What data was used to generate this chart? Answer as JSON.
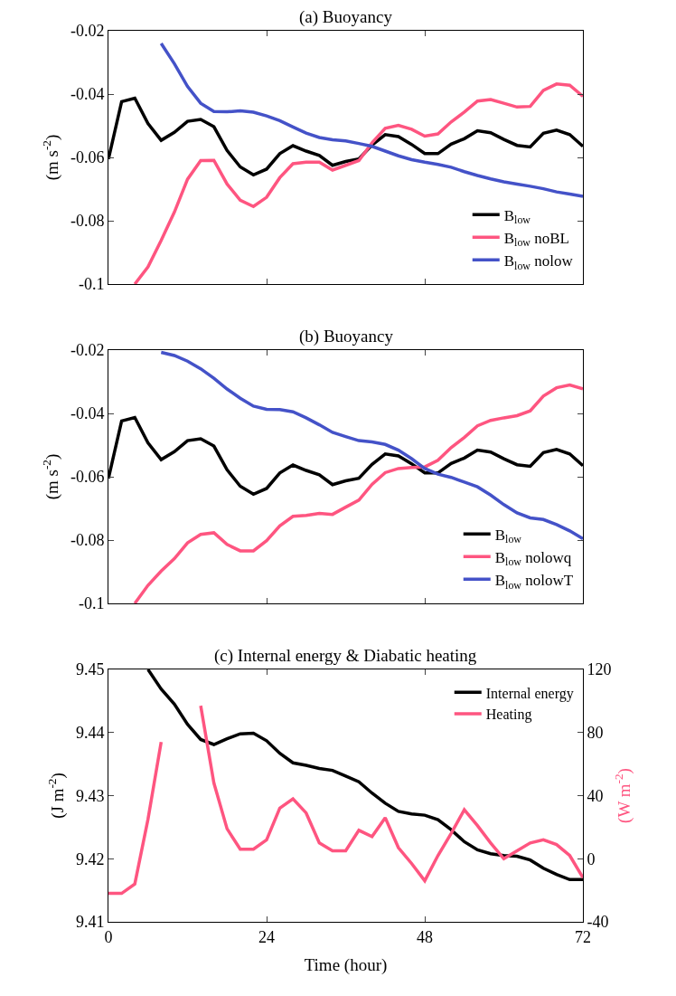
{
  "chart_data": [
    {
      "type": "line",
      "title": "(a) Buoyancy",
      "ylabel": "(m s$^{-2}$)",
      "x": [
        0,
        2,
        4,
        6,
        8,
        10,
        12,
        14,
        16,
        18,
        20,
        22,
        24,
        26,
        28,
        30,
        32,
        34,
        36,
        38,
        40,
        42,
        44,
        46,
        48,
        50,
        52,
        54,
        56,
        58,
        60,
        62,
        64,
        66,
        68,
        70,
        72
      ],
      "xlim": [
        0,
        72
      ],
      "xticks": [
        0,
        24,
        48,
        72
      ],
      "ylim": [
        -0.1,
        -0.02
      ],
      "yticks": [
        -0.1,
        -0.08,
        -0.06,
        -0.04,
        -0.02
      ],
      "tick_labels": "y",
      "legend": "bottom right",
      "line_style": "solid",
      "series": [
        {
          "name": "B$_{low}$",
          "color": "#000000",
          "values": [
            -0.0605,
            -0.0424,
            -0.0413,
            -0.0493,
            -0.0546,
            -0.0521,
            -0.0486,
            -0.048,
            -0.0503,
            -0.0578,
            -0.063,
            -0.0655,
            -0.0637,
            -0.0588,
            -0.0563,
            -0.058,
            -0.0594,
            -0.0625,
            -0.0613,
            -0.0605,
            -0.0561,
            -0.0528,
            -0.0534,
            -0.0559,
            -0.0588,
            -0.0588,
            -0.0558,
            -0.0541,
            -0.0516,
            -0.0522,
            -0.0543,
            -0.0562,
            -0.0567,
            -0.0524,
            -0.0514,
            -0.0528,
            -0.0565
          ]
        },
        {
          "name": "B$_{low}$ noBL",
          "color": "#fe5580",
          "values": [
            null,
            null,
            -0.1,
            -0.0946,
            -0.0862,
            -0.0773,
            -0.0669,
            -0.061,
            -0.0609,
            -0.0684,
            -0.0735,
            -0.0755,
            -0.0726,
            -0.0664,
            -0.062,
            -0.0615,
            -0.0615,
            -0.064,
            -0.0625,
            -0.061,
            -0.0554,
            -0.0508,
            -0.0499,
            -0.0511,
            -0.0533,
            -0.0526,
            -0.0488,
            -0.0457,
            -0.0422,
            -0.0417,
            -0.0429,
            -0.0441,
            -0.0439,
            -0.0388,
            -0.0368,
            -0.0372,
            -0.0407
          ]
        },
        {
          "name": "B$_{low}$ nolow",
          "color": "#4452c8",
          "values": [
            null,
            null,
            null,
            null,
            -0.024,
            -0.0304,
            -0.0376,
            -0.0429,
            -0.0455,
            -0.0456,
            -0.0453,
            -0.0457,
            -0.0469,
            -0.0484,
            -0.0504,
            -0.0523,
            -0.0537,
            -0.0544,
            -0.0548,
            -0.0556,
            -0.0565,
            -0.058,
            -0.0595,
            -0.0607,
            -0.0615,
            -0.0622,
            -0.0631,
            -0.0645,
            -0.0657,
            -0.0668,
            -0.0677,
            -0.0684,
            -0.0691,
            -0.0699,
            -0.0709,
            -0.0716,
            -0.0723
          ]
        }
      ]
    },
    {
      "type": "line",
      "title": "(b) Buoyancy",
      "ylabel": "(m s$^{-2}$)",
      "x": [
        0,
        2,
        4,
        6,
        8,
        10,
        12,
        14,
        16,
        18,
        20,
        22,
        24,
        26,
        28,
        30,
        32,
        34,
        36,
        38,
        40,
        42,
        44,
        46,
        48,
        50,
        52,
        54,
        56,
        58,
        60,
        62,
        64,
        66,
        68,
        70,
        72
      ],
      "xlim": [
        0,
        72
      ],
      "xticks": [
        0,
        24,
        48,
        72
      ],
      "ylim": [
        -0.1,
        -0.02
      ],
      "yticks": [
        -0.1,
        -0.08,
        -0.06,
        -0.04,
        -0.02
      ],
      "tick_labels": "y",
      "legend": "bottom right",
      "line_style": "solid",
      "series": [
        {
          "name": "B$_{low}$",
          "color": "#000000",
          "values": [
            -0.0605,
            -0.0424,
            -0.0413,
            -0.0493,
            -0.0546,
            -0.0521,
            -0.0486,
            -0.048,
            -0.0503,
            -0.0578,
            -0.063,
            -0.0655,
            -0.0637,
            -0.0588,
            -0.0563,
            -0.058,
            -0.0594,
            -0.0625,
            -0.0613,
            -0.0605,
            -0.0561,
            -0.0528,
            -0.0534,
            -0.0559,
            -0.0588,
            -0.0588,
            -0.0558,
            -0.0541,
            -0.0516,
            -0.0522,
            -0.0543,
            -0.0562,
            -0.0567,
            -0.0524,
            -0.0514,
            -0.0528,
            -0.0565
          ]
        },
        {
          "name": "B$_{low}$ nolowq",
          "color": "#fe5580",
          "values": [
            null,
            null,
            -0.1,
            -0.0943,
            -0.0898,
            -0.0859,
            -0.0809,
            -0.0782,
            -0.0777,
            -0.0814,
            -0.0834,
            -0.0834,
            -0.0802,
            -0.0755,
            -0.0725,
            -0.0722,
            -0.0716,
            -0.0719,
            -0.0696,
            -0.0674,
            -0.0624,
            -0.0587,
            -0.0574,
            -0.0571,
            -0.0569,
            -0.0548,
            -0.0508,
            -0.0476,
            -0.0439,
            -0.0422,
            -0.0414,
            -0.0407,
            -0.0392,
            -0.0345,
            -0.0319,
            -0.031,
            -0.0322
          ]
        },
        {
          "name": "B$_{low}$ nolowT",
          "color": "#4452c8",
          "values": [
            null,
            null,
            null,
            null,
            -0.0207,
            -0.0217,
            -0.0235,
            -0.0259,
            -0.0289,
            -0.0323,
            -0.0352,
            -0.0377,
            -0.0387,
            -0.0388,
            -0.0395,
            -0.0414,
            -0.0436,
            -0.046,
            -0.0473,
            -0.0486,
            -0.049,
            -0.0498,
            -0.0516,
            -0.0543,
            -0.0574,
            -0.0592,
            -0.0602,
            -0.0617,
            -0.0632,
            -0.0658,
            -0.0688,
            -0.0714,
            -0.073,
            -0.0735,
            -0.0751,
            -0.0771,
            -0.0796
          ]
        }
      ]
    },
    {
      "type": "line",
      "title": "(c) Internal energy & Diabatic heating",
      "xlabel": "Time (hour)",
      "ylabel": "(J m$^{-2}$)",
      "y2label": "(W m$^{-2}$)",
      "x": [
        0,
        2,
        4,
        6,
        8,
        10,
        12,
        14,
        16,
        18,
        20,
        22,
        24,
        26,
        28,
        30,
        32,
        34,
        36,
        38,
        40,
        42,
        44,
        46,
        48,
        50,
        52,
        54,
        56,
        58,
        60,
        62,
        64,
        66,
        68,
        70,
        72
      ],
      "xlim": [
        0,
        72
      ],
      "xticks": [
        0,
        24,
        48,
        72
      ],
      "ylim": [
        9.41,
        9.45
      ],
      "yticks": [
        9.41,
        9.42,
        9.43,
        9.44,
        9.45
      ],
      "y2lim": [
        -40,
        120
      ],
      "y2ticks": [
        -40,
        0,
        40,
        80,
        120
      ],
      "legend": "top right",
      "line_style": "solid",
      "series": [
        {
          "name": "Internal energy",
          "color": "#000000",
          "values": [
            null,
            null,
            null,
            9.45,
            9.4469,
            9.4445,
            9.4413,
            9.4389,
            9.4381,
            9.439,
            9.4398,
            9.4399,
            9.4387,
            9.4367,
            9.4352,
            9.4348,
            9.4343,
            9.434,
            9.4331,
            9.4322,
            9.4304,
            9.4288,
            9.4275,
            9.4271,
            9.4269,
            9.4262,
            9.4246,
            9.4227,
            9.4214,
            9.4208,
            9.4205,
            9.4204,
            9.4198,
            9.4185,
            9.4175,
            9.4167,
            9.4167
          ]
        },
        {
          "name": "Heating",
          "color": "#fe5580",
          "axis": "y2",
          "values": [
            -22,
            -22,
            -16,
            25,
            74,
            null,
            null,
            97,
            48,
            19,
            6,
            6,
            12,
            32,
            38,
            29,
            10,
            5,
            5,
            18,
            14,
            26,
            7,
            -3,
            -14,
            2,
            16,
            31,
            21,
            10,
            0,
            5,
            10,
            12,
            9,
            2,
            -12
          ]
        }
      ]
    }
  ]
}
